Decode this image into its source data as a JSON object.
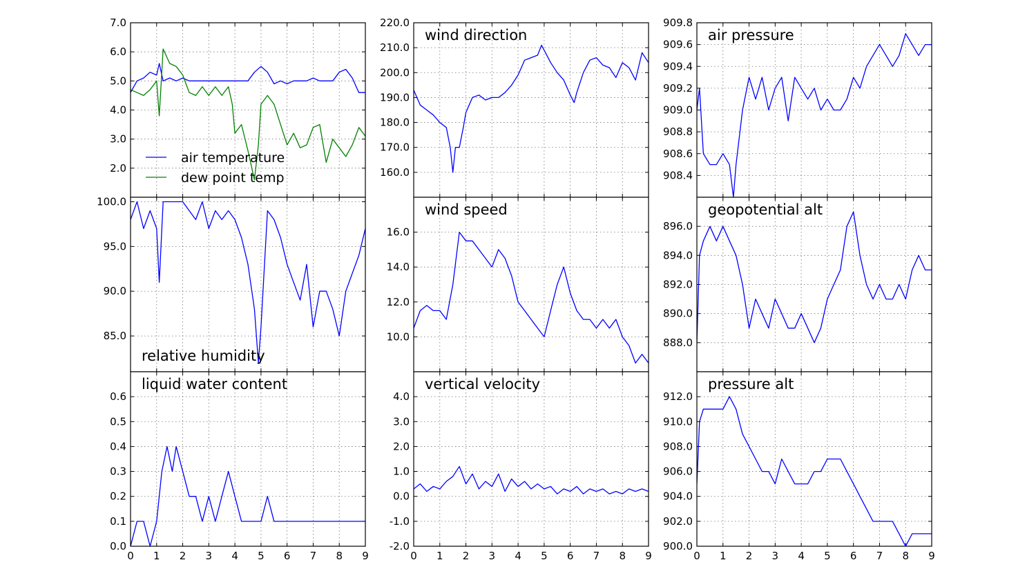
{
  "colors": {
    "blue": "#0000ff",
    "green": "#008000"
  },
  "chart_data": [
    {
      "type": "line",
      "id": "temperature",
      "title": "",
      "xlim": [
        0,
        9
      ],
      "ylim": [
        1.0,
        7.0
      ],
      "yticks": [
        "7.0",
        "6.0",
        "5.0",
        "4.0",
        "3.0",
        "2.0"
      ],
      "xticks": [],
      "grid": true,
      "legend": "lower-left",
      "series": [
        {
          "name": "air temperature",
          "color": "#0000ff",
          "x": [
            0,
            0.25,
            0.5,
            0.75,
            1,
            1.1,
            1.25,
            1.5,
            1.75,
            2,
            2.25,
            2.5,
            2.75,
            3,
            3.25,
            3.5,
            3.75,
            4,
            4.25,
            4.5,
            4.75,
            5,
            5.25,
            5.5,
            5.75,
            6,
            6.25,
            6.5,
            6.75,
            7,
            7.25,
            7.5,
            7.75,
            8,
            8.25,
            8.5,
            8.75,
            9
          ],
          "y": [
            4.6,
            5.0,
            5.1,
            5.3,
            5.2,
            5.6,
            5.0,
            5.1,
            5.0,
            5.1,
            5.0,
            5.0,
            5.0,
            5.0,
            5.0,
            5.0,
            5.0,
            5.0,
            5.0,
            5.0,
            5.3,
            5.5,
            5.3,
            4.9,
            5.0,
            4.9,
            5.0,
            5.0,
            5.0,
            5.1,
            5.0,
            5.0,
            5.0,
            5.3,
            5.4,
            5.1,
            4.6,
            4.6
          ]
        },
        {
          "name": "dew point temp",
          "color": "#008000",
          "x": [
            0,
            0.25,
            0.5,
            0.75,
            1,
            1.1,
            1.25,
            1.5,
            1.75,
            2,
            2.25,
            2.5,
            2.75,
            3,
            3.25,
            3.5,
            3.75,
            3.9,
            4,
            4.25,
            4.5,
            4.75,
            4.9,
            5,
            5.25,
            5.5,
            5.75,
            6,
            6.25,
            6.5,
            6.75,
            7,
            7.25,
            7.5,
            7.75,
            8,
            8.25,
            8.5,
            8.75,
            9
          ],
          "y": [
            4.7,
            4.6,
            4.5,
            4.7,
            5.0,
            3.8,
            6.1,
            5.6,
            5.5,
            5.2,
            4.6,
            4.5,
            4.8,
            4.5,
            4.8,
            4.5,
            4.8,
            4.2,
            3.2,
            3.5,
            2.6,
            1.6,
            2.8,
            4.2,
            4.5,
            4.2,
            3.5,
            2.8,
            3.2,
            2.7,
            2.8,
            3.4,
            3.5,
            2.2,
            3.0,
            2.7,
            2.4,
            2.8,
            3.4,
            3.1
          ]
        }
      ]
    },
    {
      "type": "line",
      "id": "wind-direction",
      "title": "wind direction",
      "xlim": [
        0,
        9
      ],
      "ylim": [
        150,
        220
      ],
      "yticks": [
        "220.0",
        "210.0",
        "200.0",
        "190.0",
        "180.0",
        "170.0",
        "160.0"
      ],
      "xticks": [],
      "grid": true,
      "series": [
        {
          "color": "#0000ff",
          "x": [
            0,
            0.25,
            0.5,
            0.75,
            1,
            1.25,
            1.4,
            1.5,
            1.6,
            1.75,
            1.9,
            2,
            2.25,
            2.5,
            2.75,
            3,
            3.25,
            3.5,
            3.75,
            4,
            4.25,
            4.5,
            4.75,
            4.9,
            5,
            5.25,
            5.5,
            5.75,
            6,
            6.15,
            6.25,
            6.5,
            6.75,
            7,
            7.25,
            7.5,
            7.75,
            8,
            8.25,
            8.5,
            8.75,
            9
          ],
          "y": [
            193,
            187,
            185,
            183,
            180,
            178,
            170,
            160,
            170,
            170,
            178,
            184,
            190,
            191,
            189,
            190,
            190,
            192,
            195,
            199,
            205,
            206,
            207,
            211,
            209,
            204,
            200,
            197,
            191,
            188,
            192,
            200,
            205,
            206,
            203,
            202,
            198,
            204,
            202,
            197,
            208,
            204
          ]
        }
      ]
    },
    {
      "type": "line",
      "id": "air-pressure",
      "title": "air pressure",
      "xlim": [
        0,
        9
      ],
      "ylim": [
        908.2,
        909.8
      ],
      "yticks": [
        "909.8",
        "909.6",
        "909.4",
        "909.2",
        "909.0",
        "908.8",
        "908.6",
        "908.4"
      ],
      "xticks": [],
      "grid": true,
      "series": [
        {
          "color": "#0000ff",
          "x": [
            0,
            0.1,
            0.25,
            0.5,
            0.75,
            1,
            1.25,
            1.4,
            1.5,
            1.75,
            2,
            2.25,
            2.5,
            2.75,
            3,
            3.25,
            3.5,
            3.75,
            4,
            4.25,
            4.5,
            4.75,
            5,
            5.25,
            5.5,
            5.75,
            6,
            6.25,
            6.5,
            6.75,
            7,
            7.25,
            7.5,
            7.75,
            8,
            8.25,
            8.5,
            8.75,
            9
          ],
          "y": [
            909.0,
            909.2,
            908.6,
            908.5,
            908.5,
            908.6,
            908.5,
            908.2,
            908.5,
            909.0,
            909.3,
            909.1,
            909.3,
            909.0,
            909.2,
            909.3,
            908.9,
            909.3,
            909.2,
            909.1,
            909.2,
            909.0,
            909.1,
            909.0,
            909.0,
            909.1,
            909.3,
            909.2,
            909.4,
            909.5,
            909.6,
            909.5,
            909.4,
            909.5,
            909.7,
            909.6,
            909.5,
            909.6,
            909.6
          ]
        }
      ]
    },
    {
      "type": "line",
      "id": "relative-humidity",
      "title": "relative humidity",
      "xlim": [
        0,
        9
      ],
      "ylim": [
        81,
        100.5
      ],
      "yticks": [
        "100.0",
        "95.0",
        "90.0",
        "85.0"
      ],
      "xticks": [],
      "grid": true,
      "series": [
        {
          "color": "#0000ff",
          "x": [
            0,
            0.25,
            0.5,
            0.75,
            1,
            1.1,
            1.25,
            1.5,
            1.75,
            2,
            2.25,
            2.5,
            2.75,
            3,
            3.25,
            3.5,
            3.75,
            4,
            4.25,
            4.5,
            4.75,
            4.9,
            5,
            5.25,
            5.5,
            5.75,
            6,
            6.25,
            6.5,
            6.75,
            7,
            7.25,
            7.5,
            7.75,
            8,
            8.25,
            8.5,
            8.75,
            9
          ],
          "y": [
            98,
            100,
            97,
            99,
            97,
            91,
            100,
            100,
            100,
            100,
            99,
            98,
            100,
            97,
            99,
            98,
            99,
            98,
            96,
            93,
            88,
            82,
            86,
            99,
            98,
            96,
            93,
            91,
            89,
            93,
            86,
            90,
            90,
            88,
            85,
            90,
            92,
            94,
            97
          ]
        }
      ]
    },
    {
      "type": "line",
      "id": "wind-speed",
      "title": "wind speed",
      "xlim": [
        0,
        9
      ],
      "ylim": [
        8,
        18
      ],
      "yticks": [
        "16.0",
        "14.0",
        "12.0",
        "10.0"
      ],
      "xticks": [],
      "grid": true,
      "series": [
        {
          "color": "#0000ff",
          "x": [
            0,
            0.25,
            0.5,
            0.75,
            1,
            1.25,
            1.5,
            1.75,
            2,
            2.25,
            2.5,
            2.75,
            3,
            3.25,
            3.5,
            3.75,
            4,
            4.25,
            4.5,
            4.75,
            5,
            5.25,
            5.5,
            5.75,
            6,
            6.25,
            6.5,
            6.75,
            7,
            7.25,
            7.5,
            7.75,
            8,
            8.25,
            8.5,
            8.75,
            9
          ],
          "y": [
            10.5,
            11.5,
            11.8,
            11.5,
            11.5,
            11.0,
            13.0,
            16.0,
            15.5,
            15.5,
            15.0,
            14.5,
            14.0,
            15.0,
            14.5,
            13.5,
            12.0,
            11.5,
            11.0,
            10.5,
            10.0,
            11.5,
            13.0,
            14.0,
            12.5,
            11.5,
            11.0,
            11.0,
            10.5,
            11.0,
            10.5,
            11.0,
            10.0,
            9.5,
            8.5,
            9.0,
            8.5
          ]
        }
      ]
    },
    {
      "type": "line",
      "id": "geopotential-alt",
      "title": "geopotential alt",
      "xlim": [
        0,
        9
      ],
      "ylim": [
        886,
        898
      ],
      "yticks": [
        "896.0",
        "894.0",
        "892.0",
        "890.0",
        "888.0"
      ],
      "xticks": [],
      "grid": true,
      "series": [
        {
          "color": "#0000ff",
          "x": [
            0,
            0.1,
            0.25,
            0.5,
            0.75,
            1,
            1.25,
            1.5,
            1.75,
            2,
            2.25,
            2.5,
            2.75,
            3,
            3.25,
            3.5,
            3.75,
            4,
            4.25,
            4.5,
            4.75,
            5,
            5.25,
            5.5,
            5.75,
            6,
            6.25,
            6.5,
            6.75,
            7,
            7.25,
            7.5,
            7.75,
            8,
            8.25,
            8.5,
            8.75,
            9
          ],
          "y": [
            888,
            894,
            895,
            896,
            895,
            896,
            895,
            894,
            892,
            889,
            891,
            890,
            889,
            891,
            890,
            889,
            889,
            890,
            889,
            888,
            889,
            891,
            892,
            893,
            896,
            897,
            894,
            892,
            891,
            892,
            891,
            891,
            892,
            891,
            893,
            894,
            893,
            893
          ]
        }
      ]
    },
    {
      "type": "line",
      "id": "liquid-water-content",
      "title": "liquid water content",
      "xlim": [
        0,
        9
      ],
      "ylim": [
        0.0,
        0.7
      ],
      "yticks": [
        "0.6",
        "0.5",
        "0.4",
        "0.3",
        "0.2",
        "0.1",
        "0.0"
      ],
      "xticks": [
        "0",
        "1",
        "2",
        "3",
        "4",
        "5",
        "6",
        "7",
        "8",
        "9"
      ],
      "grid": true,
      "series": [
        {
          "color": "#0000ff",
          "x": [
            0,
            0.25,
            0.5,
            0.75,
            1,
            1.2,
            1.4,
            1.6,
            1.75,
            2,
            2.25,
            2.5,
            2.75,
            3,
            3.25,
            3.5,
            3.75,
            4,
            4.25,
            4.5,
            4.75,
            5,
            5.25,
            5.5,
            5.75,
            6,
            6.25,
            6.5,
            6.75,
            7,
            7.25,
            7.5,
            7.75,
            8,
            8.25,
            8.5,
            8.75,
            9
          ],
          "y": [
            0.0,
            0.1,
            0.1,
            0.0,
            0.1,
            0.3,
            0.4,
            0.3,
            0.4,
            0.3,
            0.2,
            0.2,
            0.1,
            0.2,
            0.1,
            0.2,
            0.3,
            0.2,
            0.1,
            0.1,
            0.1,
            0.1,
            0.2,
            0.1,
            0.1,
            0.1,
            0.1,
            0.1,
            0.1,
            0.1,
            0.1,
            0.1,
            0.1,
            0.1,
            0.1,
            0.1,
            0.1,
            0.1
          ]
        }
      ]
    },
    {
      "type": "line",
      "id": "vertical-velocity",
      "title": "vertical velocity",
      "xlim": [
        0,
        9
      ],
      "ylim": [
        -2.0,
        5.0
      ],
      "yticks": [
        "4.0",
        "3.0",
        "2.0",
        "1.0",
        "0.0",
        "-1.0",
        "-2.0"
      ],
      "xticks": [
        "0",
        "1",
        "2",
        "3",
        "4",
        "5",
        "6",
        "7",
        "8",
        "9"
      ],
      "grid": true,
      "series": [
        {
          "color": "#0000ff",
          "x": [
            0,
            0.25,
            0.5,
            0.75,
            1,
            1.25,
            1.5,
            1.75,
            2,
            2.25,
            2.5,
            2.75,
            3,
            3.25,
            3.5,
            3.75,
            4,
            4.25,
            4.5,
            4.75,
            5,
            5.25,
            5.5,
            5.75,
            6,
            6.25,
            6.5,
            6.75,
            7,
            7.25,
            7.5,
            7.75,
            8,
            8.25,
            8.5,
            8.75,
            9
          ],
          "y": [
            0.3,
            0.5,
            0.2,
            0.4,
            0.3,
            0.6,
            0.8,
            1.2,
            0.5,
            0.9,
            0.3,
            0.6,
            0.4,
            0.9,
            0.2,
            0.7,
            0.4,
            0.6,
            0.3,
            0.5,
            0.3,
            0.4,
            0.1,
            0.3,
            0.2,
            0.4,
            0.1,
            0.3,
            0.2,
            0.3,
            0.1,
            0.2,
            0.1,
            0.3,
            0.2,
            0.3,
            0.2
          ]
        }
      ]
    },
    {
      "type": "line",
      "id": "pressure-alt",
      "title": "pressure alt",
      "xlim": [
        0,
        9
      ],
      "ylim": [
        900,
        914
      ],
      "yticks": [
        "912.0",
        "910.0",
        "908.0",
        "906.0",
        "904.0",
        "902.0",
        "900.0"
      ],
      "xticks": [
        "0",
        "1",
        "2",
        "3",
        "4",
        "5",
        "6",
        "7",
        "8",
        "9"
      ],
      "grid": true,
      "series": [
        {
          "color": "#0000ff",
          "x": [
            0,
            0.1,
            0.25,
            0.5,
            0.75,
            1,
            1.25,
            1.5,
            1.75,
            2,
            2.25,
            2.5,
            2.75,
            3,
            3.25,
            3.5,
            3.75,
            4,
            4.25,
            4.5,
            4.75,
            5,
            5.25,
            5.5,
            5.75,
            6,
            6.25,
            6.5,
            6.75,
            7,
            7.25,
            7.5,
            7.75,
            8,
            8.25,
            8.5,
            8.75,
            9
          ],
          "y": [
            905,
            910,
            911,
            911,
            911,
            911,
            912,
            911,
            909,
            908,
            907,
            906,
            906,
            905,
            907,
            906,
            905,
            905,
            905,
            906,
            906,
            907,
            907,
            907,
            906,
            905,
            904,
            903,
            902,
            902,
            902,
            902,
            901,
            900,
            901,
            901,
            901,
            901
          ]
        }
      ]
    }
  ]
}
